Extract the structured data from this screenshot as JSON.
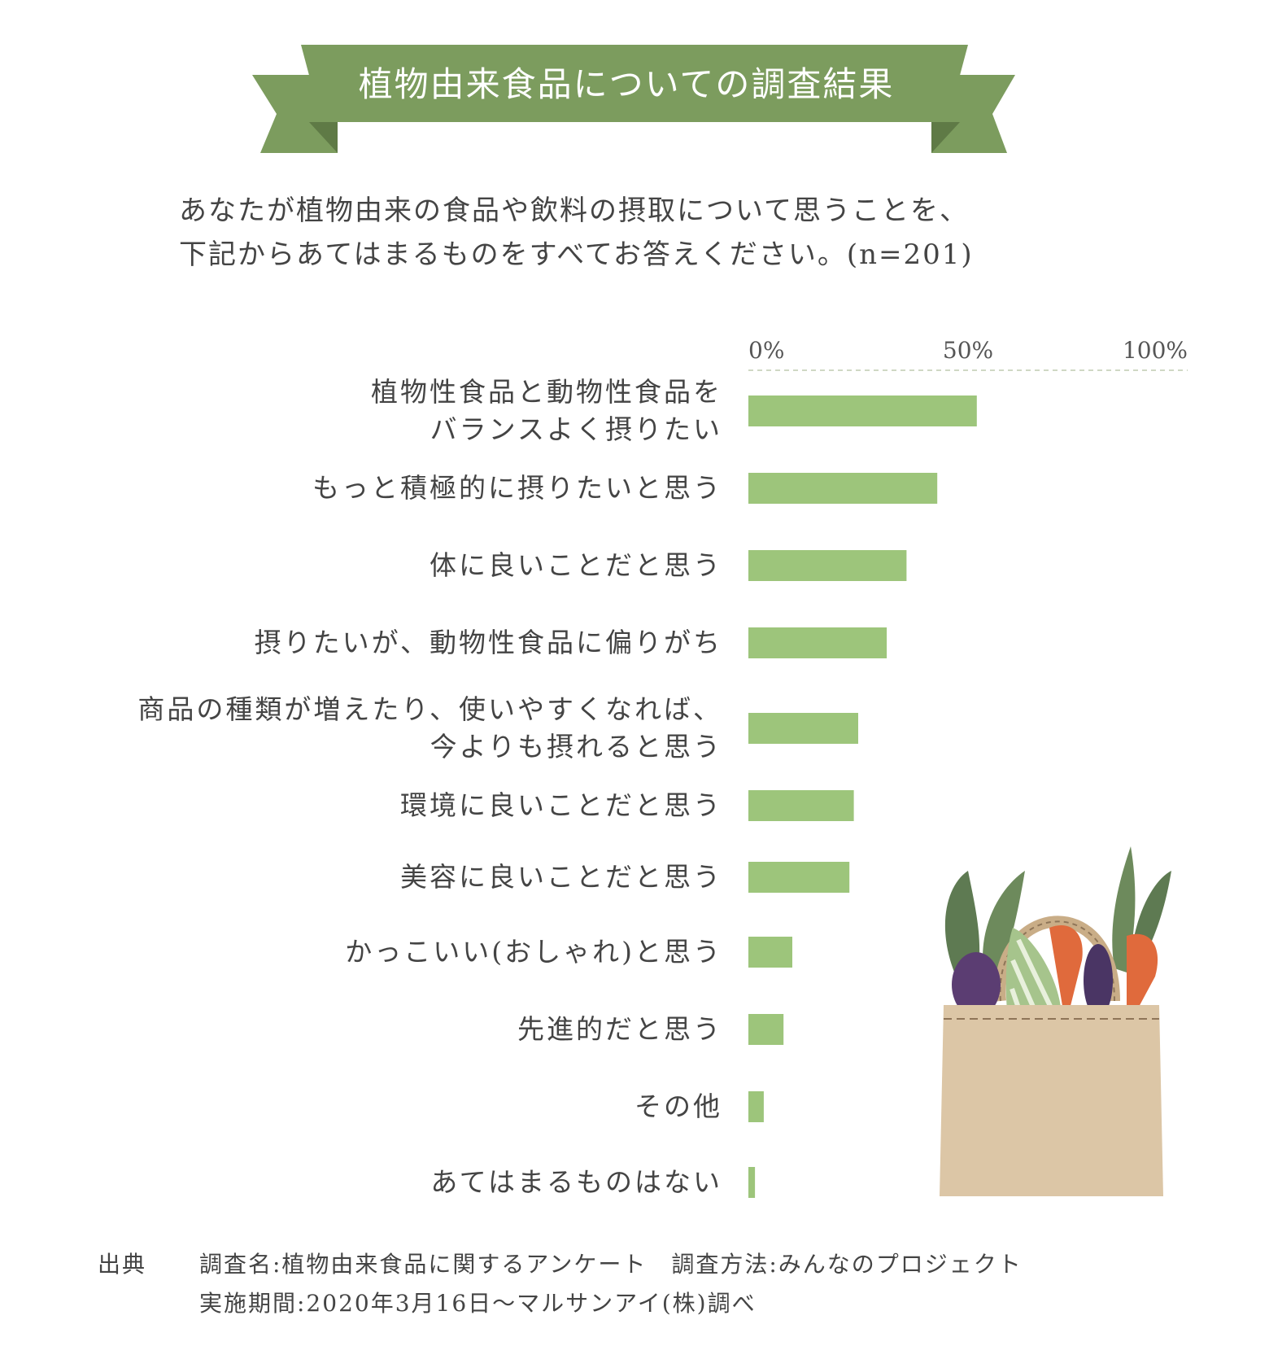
{
  "banner": {
    "title": "植物由来食品についての調査結果"
  },
  "question": {
    "line1": "あなたが植物由来の食品や飲料の摂取について思うことを、",
    "line2": "下記からあてはまるものをすべてお答えください。(n=201)"
  },
  "chart_data": {
    "type": "bar",
    "orientation": "horizontal",
    "xlim": [
      0,
      100
    ],
    "x_tick_labels": [
      "0%",
      "50%",
      "100%"
    ],
    "x_ticks": [
      0,
      50,
      100
    ],
    "unit": "%",
    "grid": false,
    "categories": [
      [
        "植物性食品と動物性食品を",
        "バランスよく摂りたい"
      ],
      [
        "もっと積極的に摂りたいと思う"
      ],
      [
        "体に良いことだと思う"
      ],
      [
        "摂りたいが、動物性食品に偏りがち"
      ],
      [
        "商品の種類が増えたり、使いやすくなれば、",
        "今よりも摂れると思う"
      ],
      [
        "環境に良いことだと思う"
      ],
      [
        "美容に良いことだと思う"
      ],
      [
        "かっこいい(おしゃれ)と思う"
      ],
      [
        "先進的だと思う"
      ],
      [
        "その他"
      ],
      [
        "あてはまるものはない"
      ]
    ],
    "values": [
      52,
      43,
      36,
      31.5,
      25,
      24,
      23,
      10,
      8,
      3.5,
      1.5
    ],
    "bar_color": "#9dc57b"
  },
  "source": {
    "label": "出典",
    "line1": "調査名:植物由来食品に関するアンケート　調査方法:みんなのプロジェクト",
    "line2": "実施期間:2020年3月16日〜マルサンアイ(株)調べ"
  },
  "colors": {
    "banner_main": "#7c9c5e",
    "banner_fold": "#5f7a46",
    "bag": "#dcc6a6"
  },
  "illustration": {
    "icon": "vegetable-bag-icon"
  }
}
